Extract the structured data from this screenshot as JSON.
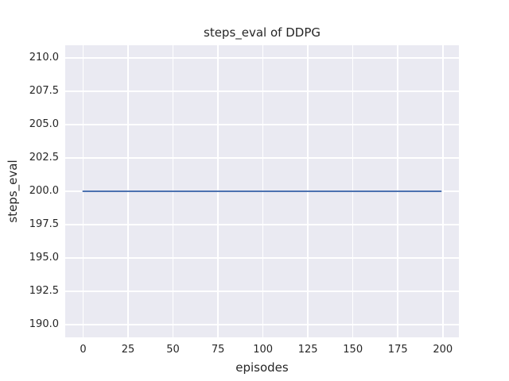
{
  "chart_data": {
    "type": "line",
    "title": "steps_eval of DDPG",
    "xlabel": "episodes",
    "ylabel": "steps_eval",
    "xlim": [
      -9.95,
      208.95
    ],
    "ylim": [
      189.05,
      210.95
    ],
    "xtick_values": [
      0,
      25,
      50,
      75,
      100,
      125,
      150,
      175,
      200
    ],
    "xtick_labels": [
      "0",
      "25",
      "50",
      "75",
      "100",
      "125",
      "150",
      "175",
      "200"
    ],
    "ytick_values": [
      190.0,
      192.5,
      195.0,
      197.5,
      200.0,
      202.5,
      205.0,
      207.5,
      210.0
    ],
    "ytick_labels": [
      "190.0",
      "192.5",
      "195.0",
      "197.5",
      "200.0",
      "202.5",
      "205.0",
      "207.5",
      "210.0"
    ],
    "grid": true,
    "legend": null,
    "style": {
      "figure_bg": "#ffffff",
      "plot_bg": "#eaeaf2",
      "grid_color": "#ffffff",
      "text_color": "#262626",
      "line_color": "#4c72b0",
      "line_width": 2
    },
    "series": [
      {
        "name": "DDPG",
        "metric": "steps_eval",
        "color": "#4c72b0",
        "x": [
          0,
          199
        ],
        "y": [
          200,
          200
        ],
        "note": "constant evaluation steps of 200 across episodes 0-199"
      }
    ]
  }
}
